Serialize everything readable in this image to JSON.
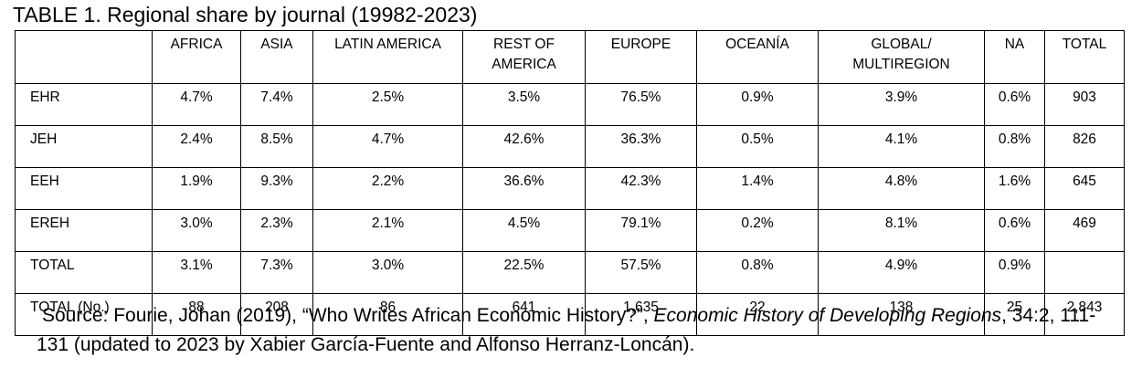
{
  "title": "TABLE 1. Regional share by journal (19982-2023)",
  "table": {
    "header": [
      "AFRICA",
      "ASIA",
      "LATIN AMERICA",
      "REST OF AMERICA",
      "EUROPE",
      "OCEANÍA",
      "GLOBAL/ MULTIREGION",
      "NA",
      "TOTAL"
    ],
    "rows": [
      [
        "EHR",
        "4.7%",
        "7.4%",
        "2.5%",
        "3.5%",
        "76.5%",
        "0.9%",
        "3.9%",
        "0.6%",
        "903"
      ],
      [
        "JEH",
        "2.4%",
        "8.5%",
        "4.7%",
        "42.6%",
        "36.3%",
        "0.5%",
        "4.1%",
        "0.8%",
        "826"
      ],
      [
        "EEH",
        "1.9%",
        "9.3%",
        "2.2%",
        "36.6%",
        "42.3%",
        "1.4%",
        "4.8%",
        "1.6%",
        "645"
      ],
      [
        "EREH",
        "3.0%",
        "2.3%",
        "2.1%",
        "4.5%",
        "79.1%",
        "0.2%",
        "8.1%",
        "0.6%",
        "469"
      ],
      [
        "TOTAL",
        "3.1%",
        "7.3%",
        "3.0%",
        "22.5%",
        "57.5%",
        "0.8%",
        "4.9%",
        "0.9%",
        null
      ],
      [
        "TOTAL (No.)",
        "88",
        "208",
        "86",
        "641",
        "1,635",
        "22",
        "138",
        "25",
        "2,843"
      ]
    ]
  },
  "source": {
    "prefix": "Source: Fourie, Johan (2019), “Who Writes African Economic History?”,",
    "journal": "Economic History of Developing Regions",
    "suffix": ", 34:2, 111-131 (updated to 2023 by Xabier García-Fuente and Alfonso Herranz-Loncán)."
  }
}
